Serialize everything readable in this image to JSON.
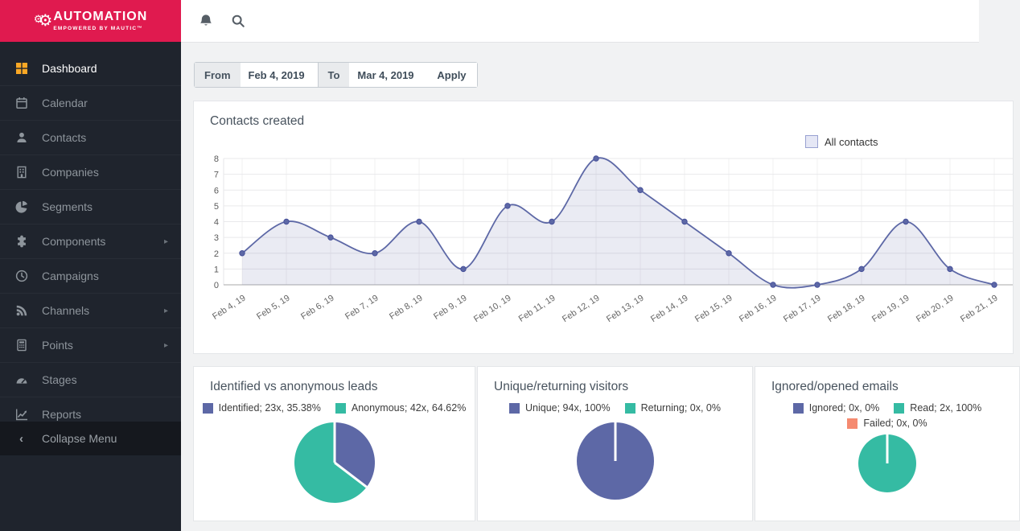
{
  "brand": {
    "name": "AUTOMATION",
    "tagline": "EMPOWERED BY MAUTIC™"
  },
  "topbar": {
    "icons": [
      "notifications-bell",
      "search"
    ]
  },
  "sidebar": {
    "items": [
      {
        "label": "Dashboard",
        "icon": "dashboard-grid",
        "active": true,
        "has_submenu": false
      },
      {
        "label": "Calendar",
        "icon": "calendar",
        "active": false,
        "has_submenu": false
      },
      {
        "label": "Contacts",
        "icon": "user",
        "active": false,
        "has_submenu": false
      },
      {
        "label": "Companies",
        "icon": "building",
        "active": false,
        "has_submenu": false
      },
      {
        "label": "Segments",
        "icon": "pie-chart",
        "active": false,
        "has_submenu": false
      },
      {
        "label": "Components",
        "icon": "puzzle",
        "active": false,
        "has_submenu": true
      },
      {
        "label": "Campaigns",
        "icon": "clock",
        "active": false,
        "has_submenu": false
      },
      {
        "label": "Channels",
        "icon": "rss",
        "active": false,
        "has_submenu": true
      },
      {
        "label": "Points",
        "icon": "calculator",
        "active": false,
        "has_submenu": true
      },
      {
        "label": "Stages",
        "icon": "gauge",
        "active": false,
        "has_submenu": false
      },
      {
        "label": "Reports",
        "icon": "chart-line",
        "active": false,
        "has_submenu": false
      }
    ],
    "submenu_arrow": "▸",
    "collapse_label": "Collapse Menu",
    "collapse_arrow": "‹"
  },
  "filter": {
    "from_label": "From",
    "from_value": "Feb 4, 2019",
    "to_label": "To",
    "to_value": "Mar 4, 2019",
    "apply_label": "Apply"
  },
  "chart_data": [
    {
      "type": "line",
      "title": "Contacts created",
      "legend": [
        {
          "label": "All contacts"
        }
      ],
      "legend_position": "top-right",
      "x": [
        "Feb 4, 19",
        "Feb 5, 19",
        "Feb 6, 19",
        "Feb 7, 19",
        "Feb 8, 19",
        "Feb 9, 19",
        "Feb 10, 19",
        "Feb 11, 19",
        "Feb 12, 19",
        "Feb 13, 19",
        "Feb 14, 19",
        "Feb 15, 19",
        "Feb 16, 19",
        "Feb 17, 19",
        "Feb 18, 19",
        "Feb 19, 19",
        "Feb 20, 19",
        "Feb 21, 19"
      ],
      "series": [
        {
          "name": "All contacts",
          "values": [
            2,
            4,
            3,
            2,
            4,
            1,
            5,
            4,
            8,
            6,
            4,
            2,
            0,
            0,
            1,
            4,
            1,
            0
          ],
          "line_color": "#5d68a6",
          "fill_color": "rgba(93,104,166,0.13)",
          "point_fill": "#5d68a6",
          "point_border": "#47519a"
        }
      ],
      "ylim": [
        0,
        8
      ],
      "yticks": [
        0,
        1,
        2,
        3,
        4,
        5,
        6,
        7,
        8
      ],
      "grid": true
    },
    {
      "type": "pie",
      "title": "Identified vs anonymous leads",
      "slices": [
        {
          "label": "Identified; 23x, 35.38%",
          "value": 23,
          "pct": 35.38,
          "color": "#5d68a6"
        },
        {
          "label": "Anonymous; 42x, 64.62%",
          "value": 42,
          "pct": 64.62,
          "color": "#35bba3"
        }
      ]
    },
    {
      "type": "pie",
      "title": "Unique/returning visitors",
      "slices": [
        {
          "label": "Unique; 94x, 100%",
          "value": 94,
          "pct": 100,
          "color": "#5d68a6"
        },
        {
          "label": "Returning; 0x, 0%",
          "value": 0,
          "pct": 0,
          "color": "#35bba3"
        }
      ]
    },
    {
      "type": "pie",
      "title": "Ignored/opened emails",
      "slices": [
        {
          "label": "Ignored; 0x, 0%",
          "value": 0,
          "pct": 0,
          "color": "#5d68a6"
        },
        {
          "label": "Read; 2x, 100%",
          "value": 2,
          "pct": 100,
          "color": "#35bba3"
        },
        {
          "label": "Failed; 0x, 0%",
          "value": 0,
          "pct": 0,
          "color": "#f58a70"
        }
      ]
    }
  ],
  "colors": {
    "brand_red": "#e01a4f",
    "sidebar_bg": "#1f242d",
    "accent_orange": "#f9a825",
    "purple": "#5d68a6",
    "teal": "#35bba3",
    "salmon": "#f58a70",
    "legend_swatch_fill": "#e5e7f5",
    "legend_swatch_border": "#98a1d1"
  }
}
